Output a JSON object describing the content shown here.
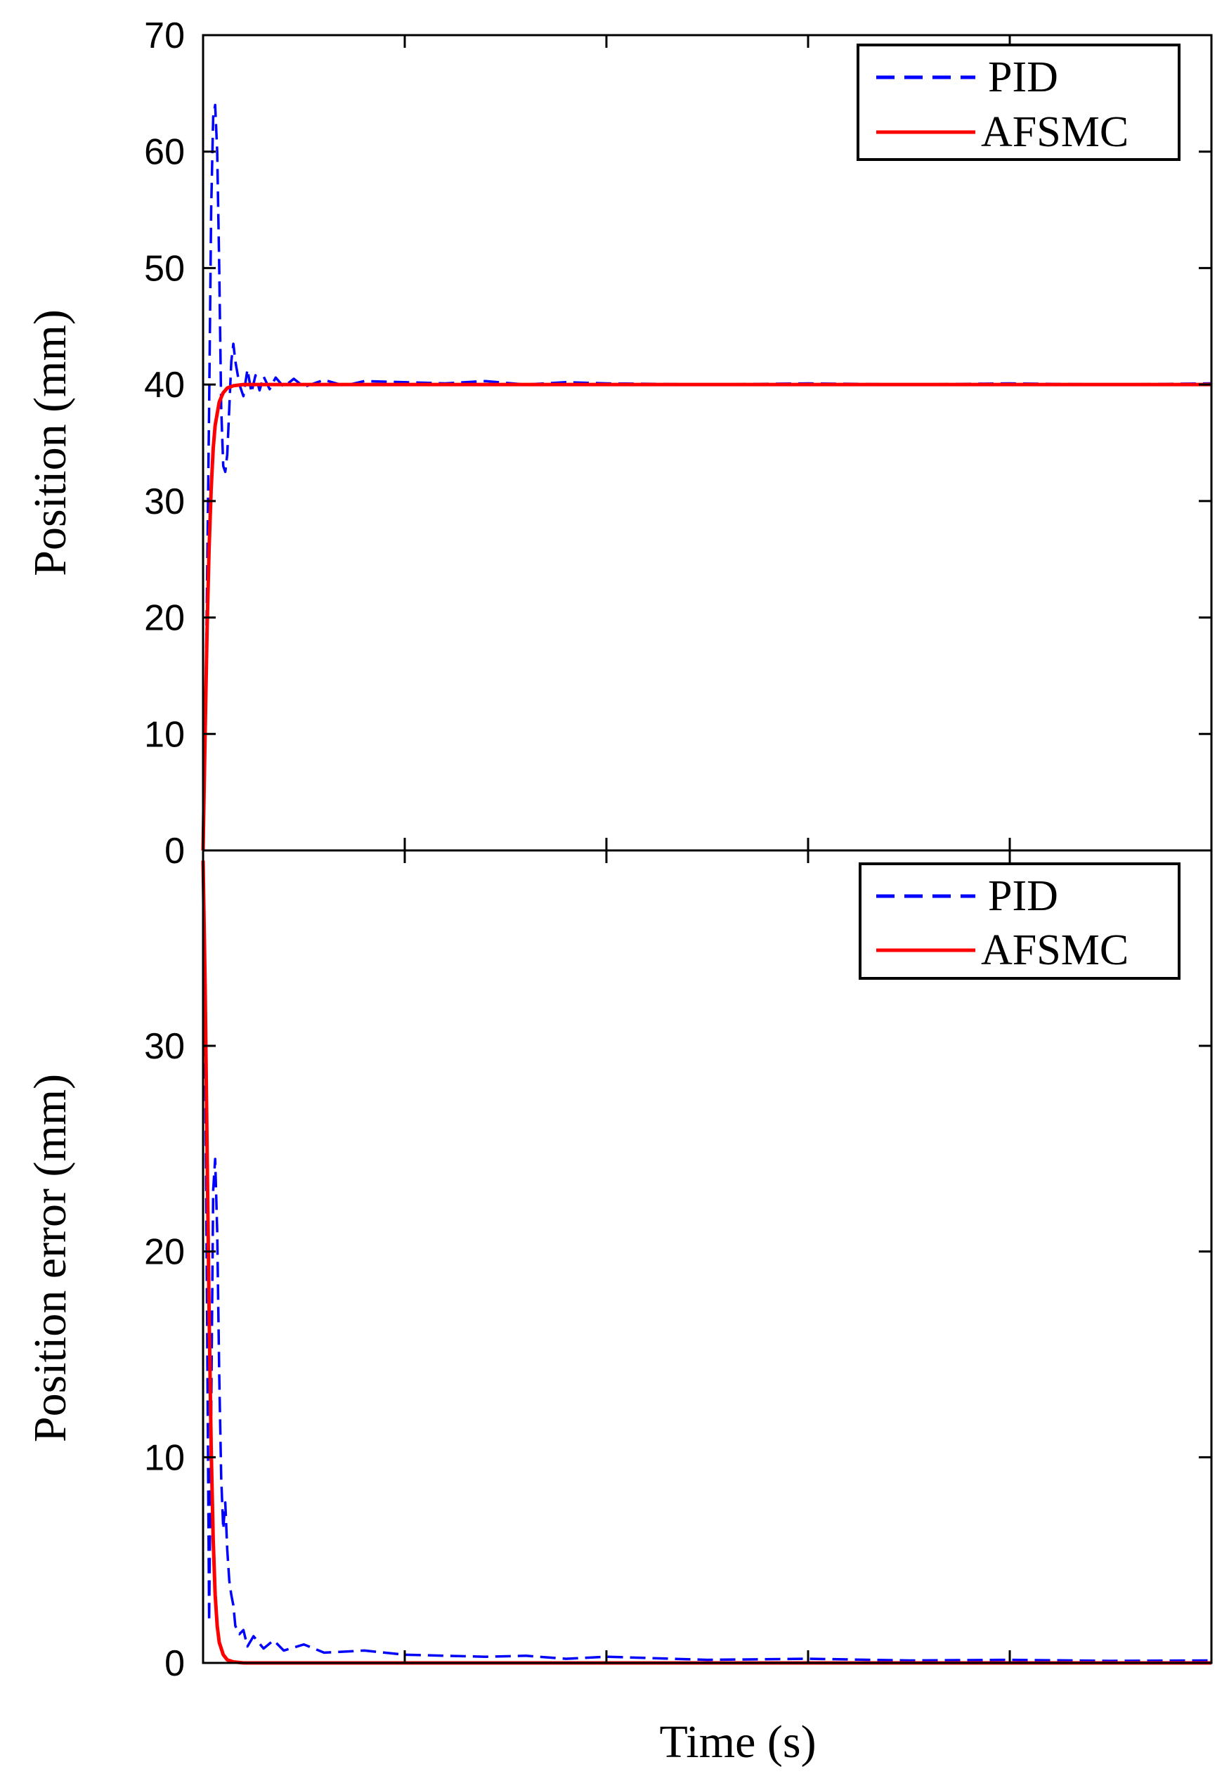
{
  "chart_data": [
    {
      "type": "line",
      "title": "",
      "xlabel": "",
      "ylabel": "Position (mm)",
      "xlim": [
        0,
        5
      ],
      "ylim": [
        0,
        70
      ],
      "yticks": [
        "0",
        "10",
        "20",
        "30",
        "40",
        "50",
        "60",
        "70"
      ],
      "grid": false,
      "legend_position": "top-right",
      "series": [
        {
          "name": "PID",
          "color": "#0000ff",
          "style": "dashed",
          "x": [
            0,
            0.01,
            0.02,
            0.03,
            0.04,
            0.05,
            0.06,
            0.07,
            0.08,
            0.09,
            0.1,
            0.11,
            0.12,
            0.13,
            0.14,
            0.15,
            0.16,
            0.18,
            0.2,
            0.22,
            0.24,
            0.26,
            0.28,
            0.3,
            0.33,
            0.36,
            0.4,
            0.45,
            0.5,
            0.6,
            0.7,
            0.8,
            1.0,
            1.2,
            1.4,
            1.6,
            1.8,
            2.0,
            2.5,
            3.0,
            3.5,
            4.0,
            4.5,
            5.0
          ],
          "values": [
            0,
            10,
            23,
            38,
            55,
            63,
            64,
            60,
            50,
            38,
            33,
            32.5,
            34,
            38,
            42,
            43.5,
            42,
            40,
            39,
            41.3,
            39.3,
            40.8,
            39.5,
            40.7,
            39.6,
            40.6,
            39.8,
            40.5,
            39.8,
            40.4,
            39.9,
            40.3,
            40.2,
            40.1,
            40.3,
            40.0,
            40.2,
            40.1,
            40.0,
            40.1,
            40.0,
            40.1,
            40.0,
            40.1
          ]
        },
        {
          "name": "AFSMC",
          "color": "#ff0000",
          "style": "solid",
          "x": [
            0,
            0.01,
            0.02,
            0.03,
            0.04,
            0.05,
            0.06,
            0.08,
            0.1,
            0.12,
            0.15,
            0.2,
            0.25,
            0.3,
            0.4,
            0.5,
            1.0,
            2.0,
            3.0,
            4.0,
            5.0
          ],
          "values": [
            0,
            10,
            19,
            26,
            31,
            34.5,
            36.5,
            38.5,
            39.3,
            39.7,
            39.9,
            40.0,
            40.0,
            40.0,
            40.0,
            40.0,
            40.0,
            40.0,
            40.0,
            40.0,
            40.0
          ]
        }
      ]
    },
    {
      "type": "line",
      "title": "",
      "xlabel": "Time (s)",
      "ylabel": "Position error  (mm)",
      "xlim": [
        0,
        5
      ],
      "ylim": [
        0,
        39.5
      ],
      "yticks": [
        "0",
        "10",
        "20",
        "30"
      ],
      "grid": false,
      "legend_position": "top-right",
      "series": [
        {
          "name": "PID",
          "color": "#0000ff",
          "style": "dashed",
          "x": [
            0,
            0.01,
            0.02,
            0.03,
            0.04,
            0.05,
            0.06,
            0.07,
            0.08,
            0.09,
            0.1,
            0.11,
            0.12,
            0.13,
            0.14,
            0.15,
            0.16,
            0.18,
            0.2,
            0.22,
            0.25,
            0.3,
            0.35,
            0.4,
            0.5,
            0.6,
            0.8,
            1.0,
            1.2,
            1.4,
            1.6,
            1.8,
            2.0,
            2.5,
            3.0,
            3.5,
            4.0,
            4.5,
            5.0
          ],
          "values": [
            39,
            30,
            17,
            2,
            12,
            23,
            24.5,
            21,
            14,
            9,
            6.5,
            7.8,
            5.5,
            4,
            3.3,
            2.8,
            1.8,
            1.4,
            1.6,
            0.8,
            1.3,
            0.7,
            1.1,
            0.6,
            0.9,
            0.5,
            0.6,
            0.4,
            0.35,
            0.3,
            0.35,
            0.2,
            0.3,
            0.15,
            0.2,
            0.12,
            0.15,
            0.1,
            0.12
          ]
        },
        {
          "name": "AFSMC",
          "color": "#ff0000",
          "style": "solid",
          "x": [
            0,
            0.01,
            0.02,
            0.03,
            0.04,
            0.05,
            0.06,
            0.07,
            0.08,
            0.1,
            0.12,
            0.15,
            0.2,
            0.3,
            0.5,
            1.0,
            2.0,
            3.0,
            4.0,
            5.0
          ],
          "values": [
            39,
            33,
            25,
            17,
            10.5,
            6,
            3.3,
            1.8,
            1.0,
            0.4,
            0.15,
            0.05,
            0,
            0,
            0,
            0,
            0,
            0,
            0,
            0
          ]
        }
      ]
    }
  ]
}
